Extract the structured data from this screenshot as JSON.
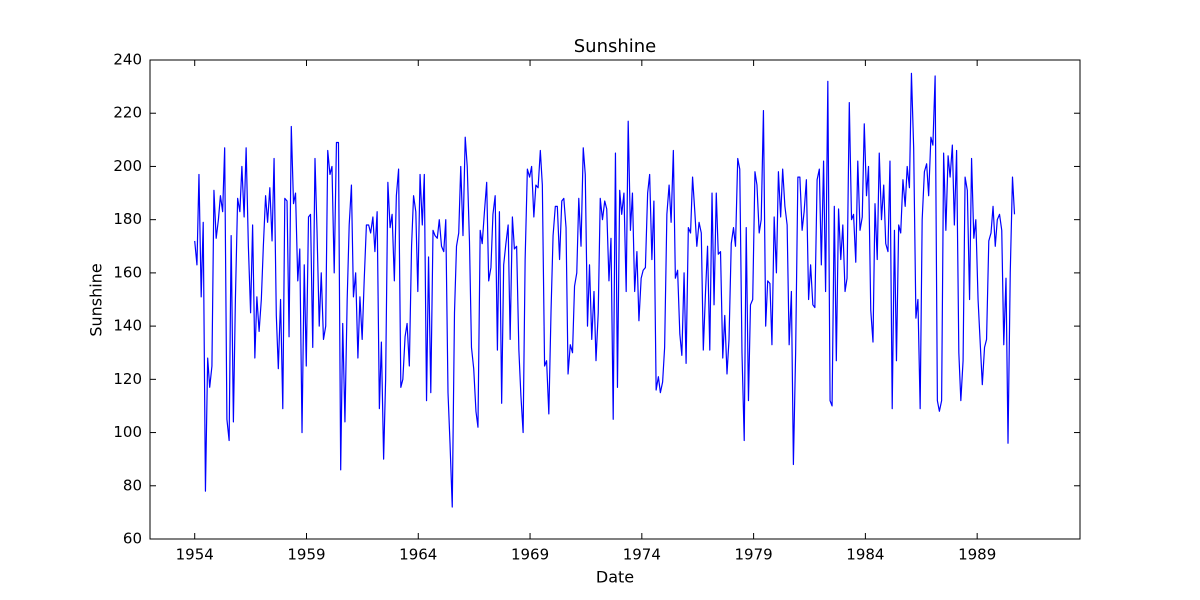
{
  "chart_data": {
    "type": "line",
    "title": "Sunshine",
    "x_label": "Date",
    "y_label": "Sunshine",
    "color": "#0000ff",
    "xlim": [
      1952,
      1993.6
    ],
    "xticks": [
      1954,
      1959,
      1964,
      1969,
      1974,
      1979,
      1984,
      1989
    ],
    "ylim": [
      60,
      240
    ],
    "yticks": [
      60,
      80,
      100,
      120,
      140,
      160,
      180,
      200,
      220,
      240
    ],
    "grid": false,
    "x": [
      1954,
      1954.1,
      1954.19,
      1954.29,
      1954.38,
      1954.48,
      1954.58,
      1954.67,
      1954.77,
      1954.86,
      1954.96,
      1955.06,
      1955.15,
      1955.25,
      1955.34,
      1955.44,
      1955.54,
      1955.63,
      1955.73,
      1955.82,
      1955.92,
      1956.02,
      1956.11,
      1956.21,
      1956.3,
      1956.4,
      1956.5,
      1956.59,
      1956.69,
      1956.78,
      1956.88,
      1956.98,
      1957.07,
      1957.17,
      1957.26,
      1957.36,
      1957.46,
      1957.55,
      1957.65,
      1957.74,
      1957.84,
      1957.94,
      1958.03,
      1958.13,
      1958.22,
      1958.32,
      1958.42,
      1958.51,
      1958.61,
      1958.7,
      1958.8,
      1958.9,
      1958.99,
      1959.09,
      1959.18,
      1959.28,
      1959.38,
      1959.47,
      1959.57,
      1959.66,
      1959.76,
      1959.86,
      1959.95,
      1960.05,
      1960.14,
      1960.24,
      1960.34,
      1960.43,
      1960.53,
      1960.62,
      1960.72,
      1960.82,
      1960.91,
      1961.01,
      1961.1,
      1961.2,
      1961.3,
      1961.39,
      1961.49,
      1961.58,
      1961.68,
      1961.78,
      1961.87,
      1961.97,
      1962.06,
      1962.16,
      1962.26,
      1962.35,
      1962.45,
      1962.54,
      1962.64,
      1962.74,
      1962.83,
      1962.93,
      1963.02,
      1963.12,
      1963.22,
      1963.31,
      1963.41,
      1963.5,
      1963.6,
      1963.7,
      1963.79,
      1963.89,
      1963.98,
      1964.08,
      1964.18,
      1964.27,
      1964.37,
      1964.46,
      1964.56,
      1964.66,
      1964.75,
      1964.85,
      1964.94,
      1965.04,
      1965.14,
      1965.23,
      1965.33,
      1965.42,
      1965.52,
      1965.62,
      1965.71,
      1965.81,
      1965.9,
      1966,
      1966.1,
      1966.19,
      1966.29,
      1966.38,
      1966.48,
      1966.58,
      1966.67,
      1966.77,
      1966.86,
      1966.96,
      1967.06,
      1967.15,
      1967.25,
      1967.34,
      1967.44,
      1967.54,
      1967.63,
      1967.73,
      1967.82,
      1967.92,
      1968.02,
      1968.11,
      1968.21,
      1968.3,
      1968.4,
      1968.5,
      1968.59,
      1968.69,
      1968.78,
      1968.88,
      1968.98,
      1969.07,
      1969.17,
      1969.26,
      1969.36,
      1969.46,
      1969.55,
      1969.65,
      1969.74,
      1969.84,
      1969.94,
      1970.03,
      1970.13,
      1970.22,
      1970.32,
      1970.42,
      1970.51,
      1970.61,
      1970.7,
      1970.8,
      1970.9,
      1970.99,
      1971.09,
      1971.18,
      1971.28,
      1971.38,
      1971.47,
      1971.57,
      1971.66,
      1971.76,
      1971.86,
      1971.95,
      1972.05,
      1972.14,
      1972.24,
      1972.34,
      1972.43,
      1972.53,
      1972.62,
      1972.72,
      1972.82,
      1972.91,
      1973.01,
      1973.1,
      1973.2,
      1973.3,
      1973.39,
      1973.49,
      1973.58,
      1973.68,
      1973.78,
      1973.87,
      1973.97,
      1974.06,
      1974.16,
      1974.26,
      1974.35,
      1974.45,
      1974.54,
      1974.64,
      1974.74,
      1974.83,
      1974.93,
      1975.02,
      1975.12,
      1975.22,
      1975.31,
      1975.41,
      1975.5,
      1975.6,
      1975.7,
      1975.79,
      1975.89,
      1975.98,
      1976.08,
      1976.18,
      1976.27,
      1976.37,
      1976.46,
      1976.56,
      1976.66,
      1976.75,
      1976.85,
      1976.94,
      1977.04,
      1977.14,
      1977.23,
      1977.33,
      1977.42,
      1977.52,
      1977.62,
      1977.71,
      1977.81,
      1977.9,
      1978,
      1978.1,
      1978.19,
      1978.29,
      1978.38,
      1978.48,
      1978.58,
      1978.67,
      1978.77,
      1978.86,
      1978.96,
      1979.06,
      1979.15,
      1979.25,
      1979.34,
      1979.44,
      1979.54,
      1979.63,
      1979.73,
      1979.82,
      1979.92,
      1980.02,
      1980.11,
      1980.21,
      1980.3,
      1980.4,
      1980.5,
      1980.59,
      1980.69,
      1980.78,
      1980.88,
      1980.98,
      1981.07,
      1981.17,
      1981.26,
      1981.36,
      1981.46,
      1981.55,
      1981.65,
      1981.74,
      1981.84,
      1981.94,
      1982.03,
      1982.13,
      1982.22,
      1982.32,
      1982.42,
      1982.51,
      1982.61,
      1982.7,
      1982.8,
      1982.9,
      1982.99,
      1983.09,
      1983.18,
      1983.28,
      1983.38,
      1983.47,
      1983.57,
      1983.66,
      1983.76,
      1983.86,
      1983.95,
      1984.05,
      1984.14,
      1984.24,
      1984.34,
      1984.43,
      1984.53,
      1984.62,
      1984.72,
      1984.82,
      1984.91,
      1985.01,
      1985.1,
      1985.2,
      1985.3,
      1985.39,
      1985.49,
      1985.58,
      1985.68,
      1985.78,
      1985.87,
      1985.97,
      1986.06,
      1986.16,
      1986.26,
      1986.35,
      1986.45,
      1986.54,
      1986.64,
      1986.74,
      1986.83,
      1986.93,
      1987.02,
      1987.12,
      1987.22,
      1987.31,
      1987.41,
      1987.5,
      1987.6,
      1987.7,
      1987.79,
      1987.89,
      1987.98,
      1988.08,
      1988.18,
      1988.27,
      1988.37,
      1988.46,
      1988.56,
      1988.66,
      1988.75,
      1988.85,
      1988.94,
      1989.04,
      1989.14,
      1989.23,
      1989.33,
      1989.42,
      1989.52,
      1989.62,
      1989.71,
      1989.81,
      1989.9,
      1990,
      1990.1,
      1990.19,
      1990.29,
      1990.38,
      1990.48,
      1990.58,
      1990.67
    ],
    "values": [
      172,
      163,
      197,
      151,
      179,
      78,
      128,
      117,
      125,
      191,
      173,
      180,
      189,
      183,
      207,
      105,
      97,
      174,
      104,
      150,
      188,
      183,
      200,
      181,
      207,
      170,
      145,
      178,
      128,
      151,
      138,
      150,
      170,
      189,
      179,
      192,
      172,
      203,
      144,
      124,
      150,
      109,
      188,
      187,
      136,
      215,
      186,
      190,
      157,
      169,
      100,
      163,
      125,
      181,
      182,
      132,
      203,
      176,
      140,
      160,
      135,
      140,
      206,
      197,
      200,
      160,
      209,
      209,
      86,
      141,
      104,
      150,
      178,
      193,
      151,
      160,
      128,
      151,
      135,
      157,
      178,
      178,
      175,
      181,
      168,
      183,
      109,
      134,
      90,
      120,
      194,
      177,
      182,
      157,
      189,
      199,
      117,
      120,
      136,
      141,
      125,
      170,
      189,
      183,
      153,
      197,
      178,
      197,
      112,
      166,
      115,
      176,
      174,
      173,
      180,
      170,
      168,
      180,
      115,
      96,
      72,
      145,
      170,
      175,
      200,
      174,
      211,
      200,
      172,
      132,
      124,
      108,
      102,
      176,
      171,
      183,
      194,
      157,
      162,
      182,
      189,
      131,
      183,
      111,
      163,
      171,
      178,
      135,
      181,
      169,
      170,
      131,
      114,
      100,
      165,
      199,
      196,
      200,
      181,
      193,
      192,
      206,
      193,
      125,
      127,
      107,
      146,
      174,
      185,
      185,
      165,
      187,
      188,
      177,
      122,
      133,
      130,
      155,
      160,
      188,
      170,
      207,
      197,
      140,
      163,
      135,
      153,
      127,
      145,
      188,
      180,
      187,
      184,
      157,
      173,
      105,
      205,
      117,
      191,
      182,
      190,
      153,
      217,
      176,
      190,
      153,
      168,
      142,
      158,
      161,
      162,
      190,
      197,
      165,
      187,
      116,
      121,
      115,
      119,
      132,
      182,
      193,
      179,
      206,
      158,
      161,
      137,
      129,
      160,
      126,
      177,
      175,
      196,
      183,
      170,
      179,
      175,
      131,
      153,
      170,
      131,
      190,
      148,
      190,
      167,
      168,
      128,
      144,
      122,
      135,
      171,
      177,
      170,
      203,
      199,
      130,
      97,
      177,
      112,
      148,
      150,
      198,
      193,
      175,
      180,
      221,
      140,
      157,
      156,
      133,
      181,
      160,
      198,
      181,
      199,
      185,
      178,
      133,
      153,
      88,
      130,
      196,
      196,
      176,
      183,
      195,
      150,
      163,
      148,
      147,
      195,
      199,
      163,
      202,
      153,
      232,
      112,
      110,
      185,
      127,
      184,
      165,
      178,
      153,
      158,
      224,
      180,
      182,
      164,
      202,
      176,
      181,
      216,
      189,
      200,
      146,
      134,
      186,
      165,
      205,
      180,
      193,
      171,
      168,
      202,
      109,
      176,
      127,
      178,
      175,
      195,
      185,
      200,
      192,
      235,
      207,
      143,
      150,
      109,
      180,
      198,
      201,
      189,
      211,
      208,
      234,
      112,
      108,
      112,
      205,
      176,
      204,
      196,
      208,
      178,
      206,
      130,
      112,
      127,
      196,
      191,
      150,
      203,
      173,
      180,
      150,
      133,
      118,
      132,
      135,
      172,
      175,
      185,
      170,
      180,
      182,
      176,
      133,
      158,
      96,
      160,
      196,
      182
    ]
  }
}
